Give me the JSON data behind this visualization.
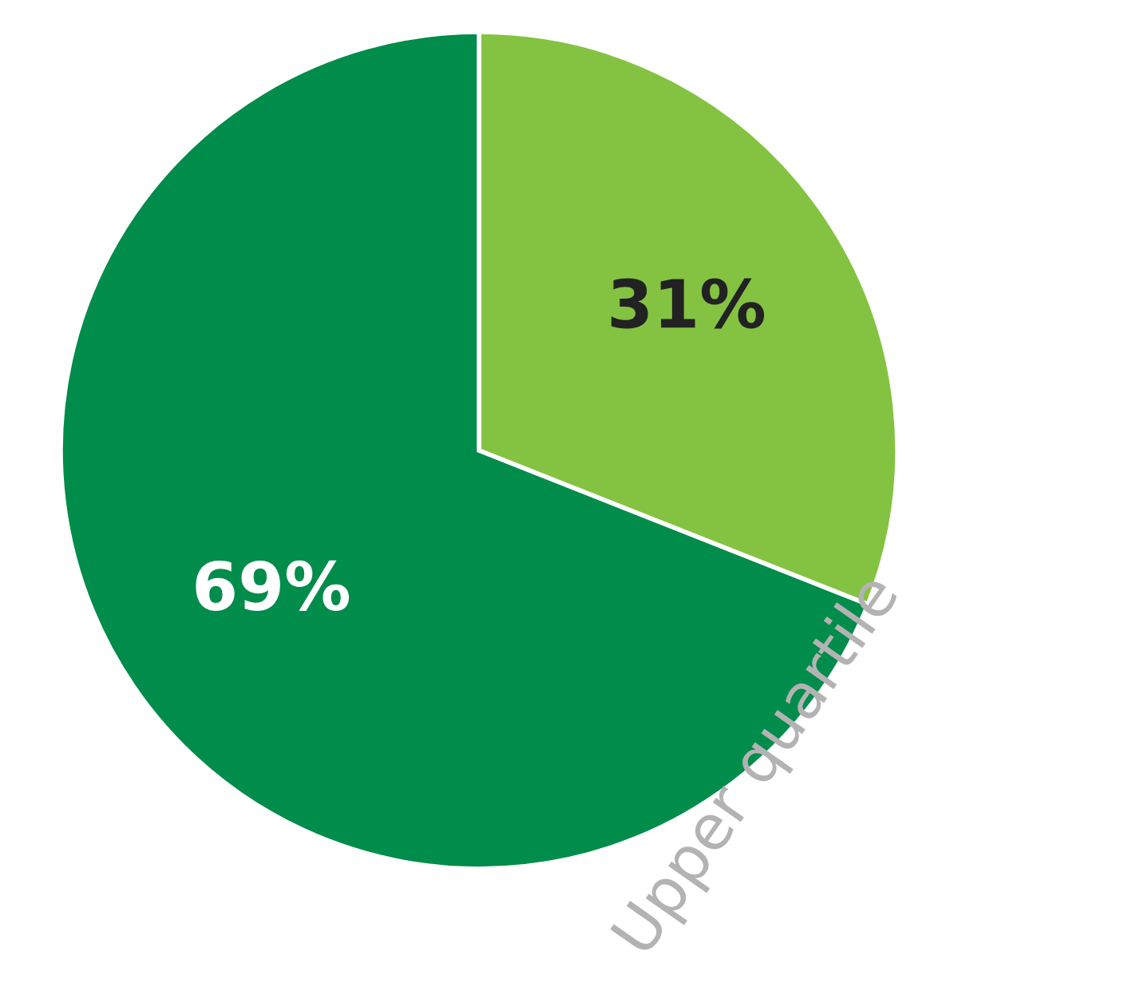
{
  "chart_data": {
    "type": "pie",
    "categories": [
      null,
      null
    ],
    "values": [
      31,
      69
    ],
    "colors": [
      "#84c341",
      "#008c4a"
    ],
    "value_labels": [
      "31%",
      "69%"
    ],
    "annotations": [
      "Upper quartile"
    ]
  }
}
